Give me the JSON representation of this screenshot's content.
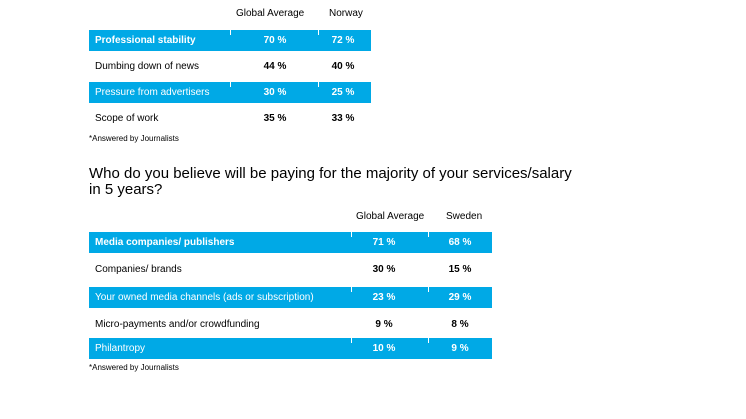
{
  "table1": {
    "col1": "Global Average",
    "col2": "Norway",
    "rows": [
      {
        "label": "Professional stability",
        "v1": "70 %",
        "v2": "72 %"
      },
      {
        "label": "Dumbing down of news",
        "v1": "44 %",
        "v2": "40 %"
      },
      {
        "label": "Pressure from advertisers",
        "v1": "30 %",
        "v2": "25 %"
      },
      {
        "label": "Scope of work",
        "v1": "35 %",
        "v2": "33 %"
      }
    ],
    "note": "*Answered by Journalists"
  },
  "question": {
    "line1": "Who do you believe will be paying for the majority of your services/salary",
    "line2": "in 5 years?"
  },
  "table2": {
    "col1": "Global Average",
    "col2": "Sweden",
    "rows": [
      {
        "label": "Media companies/ publishers",
        "v1": "71 %",
        "v2": "68 %"
      },
      {
        "label": "Companies/ brands",
        "v1": "30 %",
        "v2": "15 %"
      },
      {
        "label": "Your owned media channels (ads or subscription)",
        "v1": "23 %",
        "v2": "29 %"
      },
      {
        "label": "Micro-payments and/or crowdfunding",
        "v1": "9 %",
        "v2": "8 %"
      },
      {
        "label": "Philantropy",
        "v1": "10 %",
        "v2": "9 %"
      }
    ],
    "note": "*Answered by Journalists"
  },
  "colors": {
    "accent": "#00a9e6"
  }
}
